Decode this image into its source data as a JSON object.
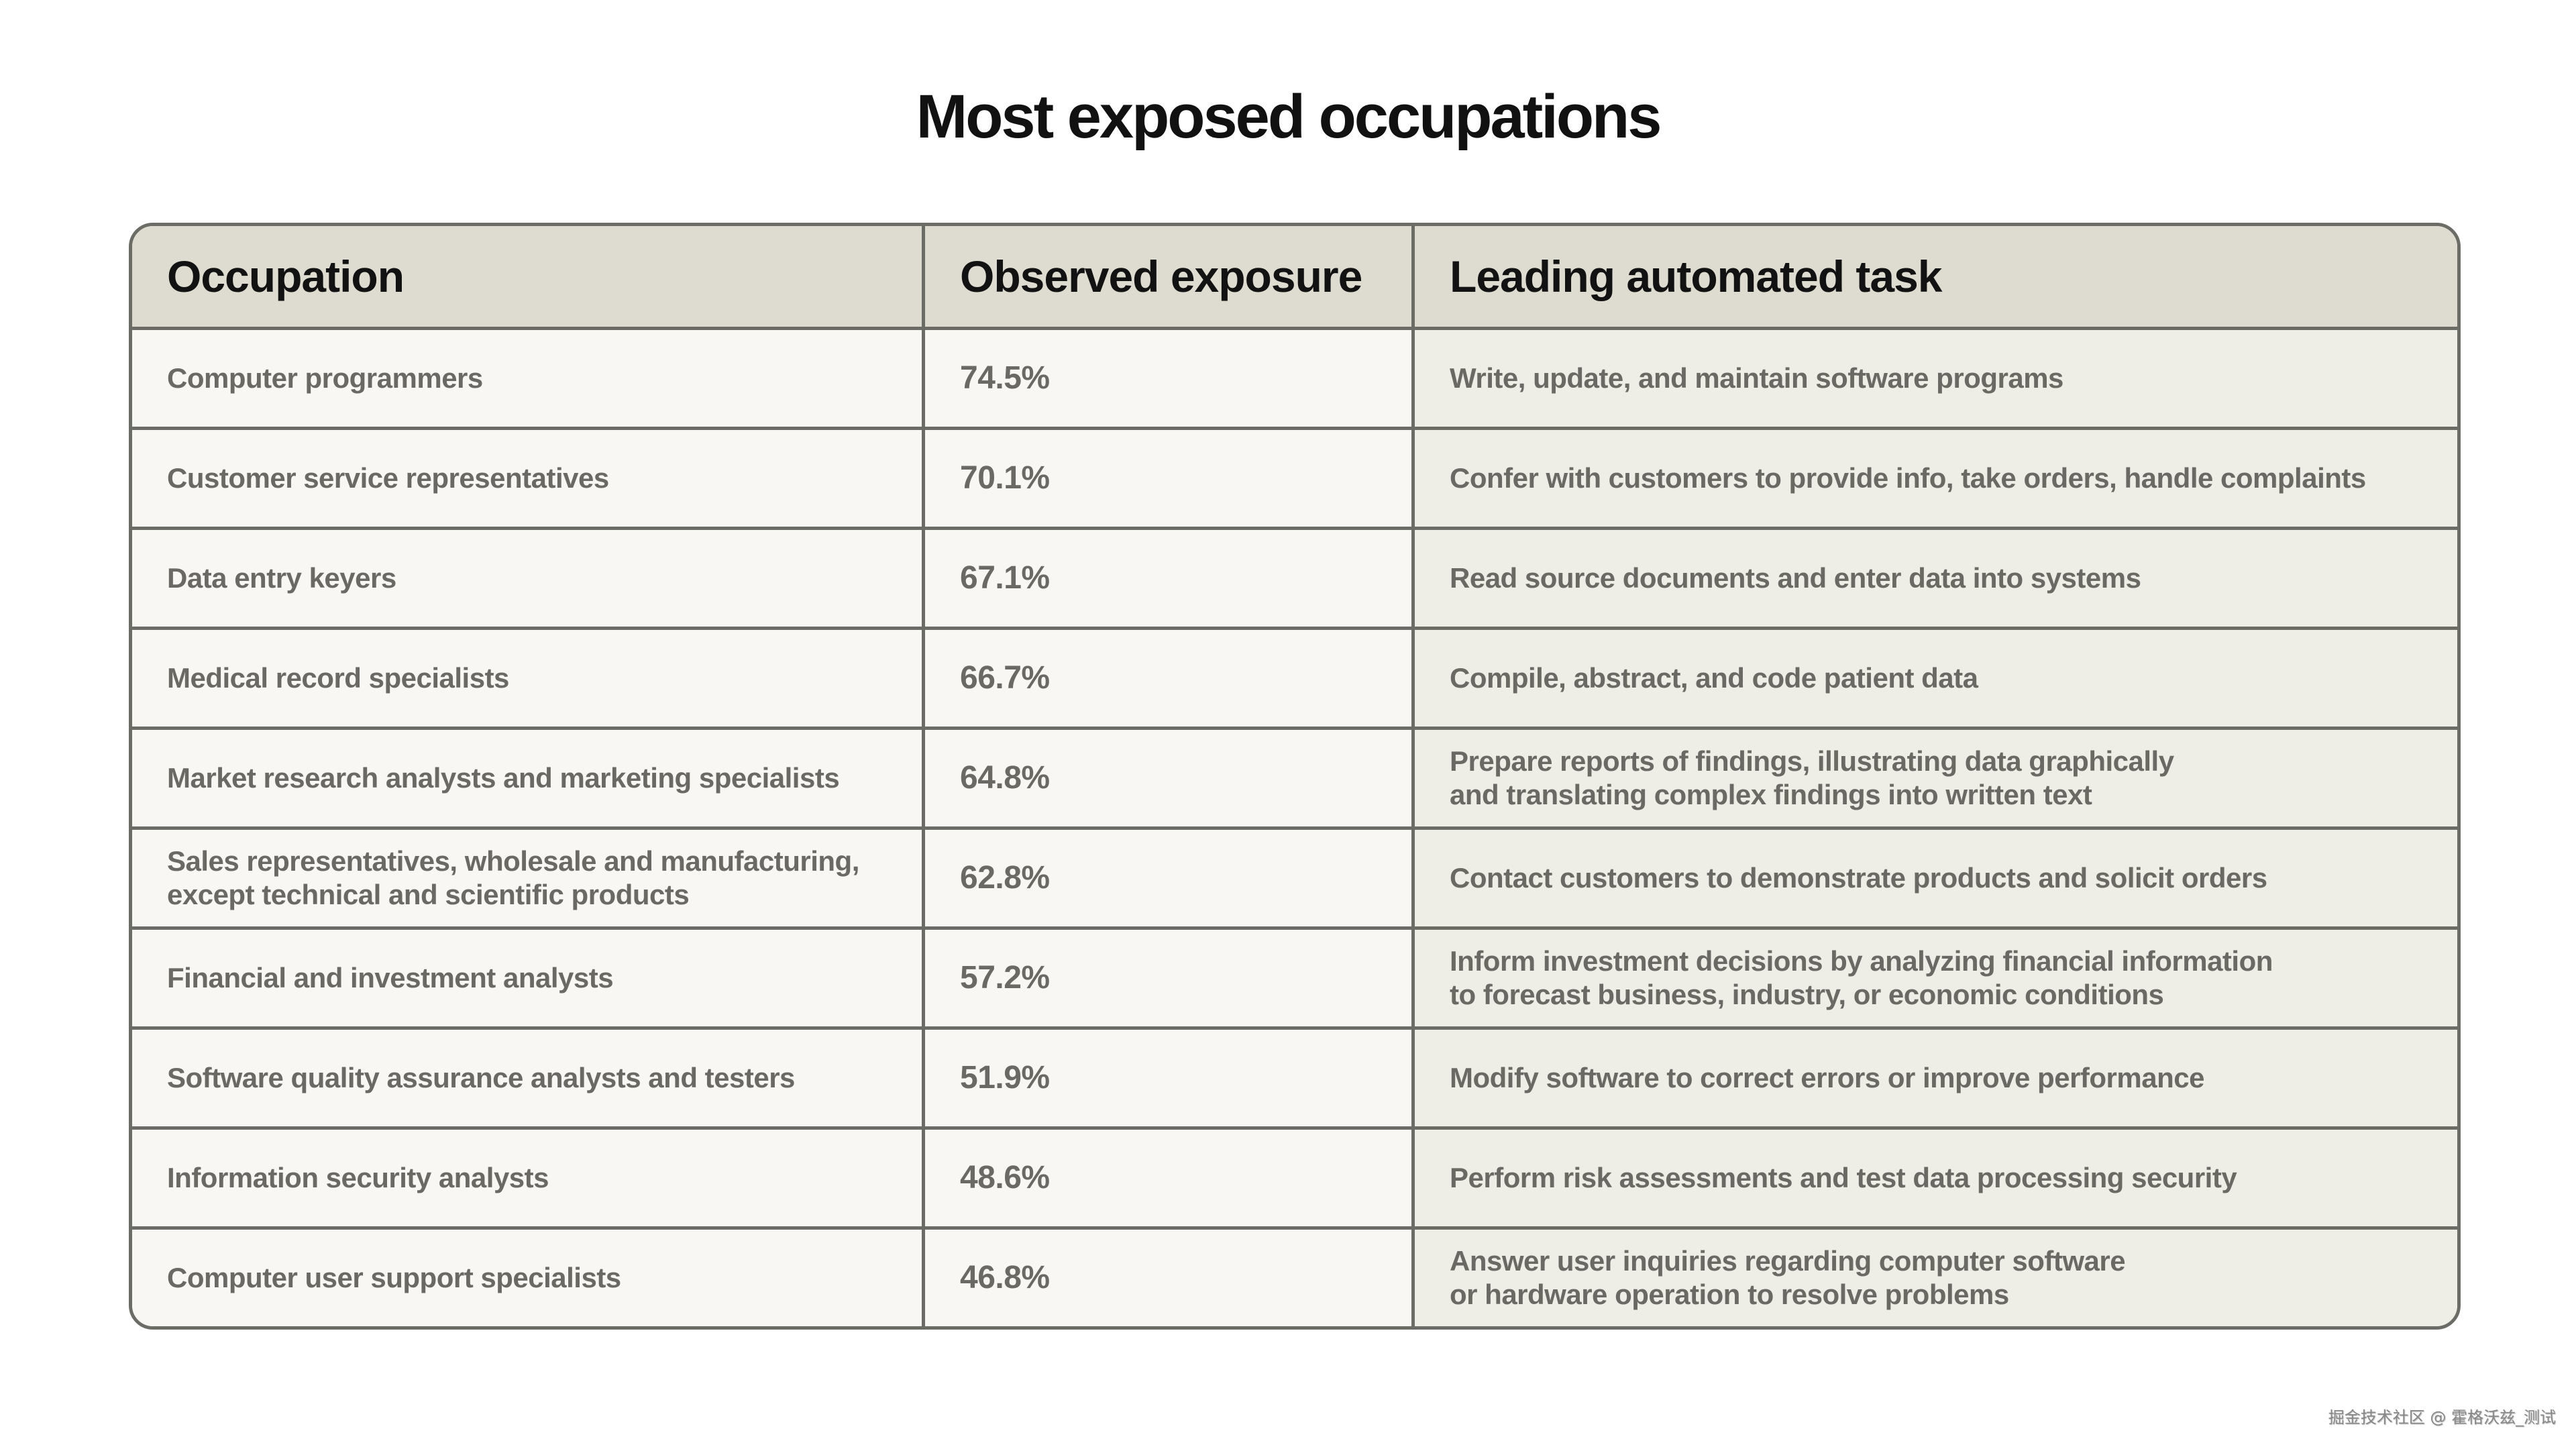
{
  "title": "Most exposed occupations",
  "columns": [
    "Occupation",
    "Observed exposure",
    "Leading automated task"
  ],
  "rows": [
    {
      "occupation": "Computer programmers",
      "exposure": "74.5%",
      "task": "Write, update, and maintain software programs"
    },
    {
      "occupation": "Customer service representatives",
      "exposure": "70.1%",
      "task": "Confer with customers to provide info, take orders, handle complaints"
    },
    {
      "occupation": "Data entry keyers",
      "exposure": "67.1%",
      "task": "Read source documents and enter data into systems"
    },
    {
      "occupation": "Medical record specialists",
      "exposure": "66.7%",
      "task": "Compile, abstract, and code patient data"
    },
    {
      "occupation": "Market research analysts and marketing specialists",
      "exposure": "64.8%",
      "task": "Prepare reports of findings, illustrating data graphically\nand translating complex findings into written text"
    },
    {
      "occupation": "Sales representatives, wholesale and manufacturing,\nexcept technical and scientific products",
      "exposure": "62.8%",
      "task": "Contact customers to demonstrate products and solicit orders"
    },
    {
      "occupation": "Financial and investment analysts",
      "exposure": "57.2%",
      "task": "Inform investment decisions by analyzing financial information\nto forecast business, industry, or economic conditions"
    },
    {
      "occupation": "Software quality assurance analysts and testers",
      "exposure": "51.9%",
      "task": "Modify software to correct errors or improve performance"
    },
    {
      "occupation": "Information security analysts",
      "exposure": "48.6%",
      "task": "Perform risk assessments and test data processing security"
    },
    {
      "occupation": "Computer user support specialists",
      "exposure": "46.8%",
      "task": "Answer user inquiries regarding computer software\nor hardware operation to resolve problems"
    }
  ],
  "watermark": "掘金技术社区 @ 霍格沃兹_测试"
}
